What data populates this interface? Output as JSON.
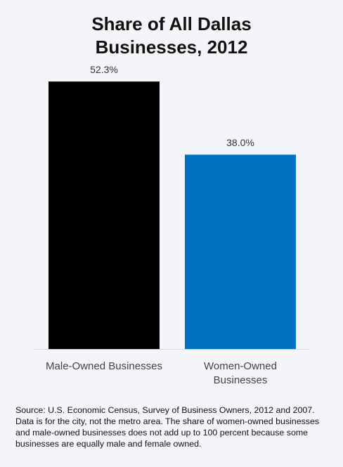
{
  "chart_data": {
    "type": "bar",
    "title_lines": [
      "Share of All Dallas",
      "Businesses, 2012"
    ],
    "categories": [
      "Male-Owned Businesses",
      "Women-Owned Businesses"
    ],
    "category_label_lines": [
      [
        "Male-Owned Businesses"
      ],
      [
        "Women-Owned",
        "Businesses"
      ]
    ],
    "values": [
      52.3,
      38.0
    ],
    "value_labels": [
      "52.3%",
      "38.0%"
    ],
    "colors": [
      "#000000",
      "#0070c0"
    ],
    "ylim": [
      0,
      60
    ],
    "grid": false,
    "xlabel": "",
    "ylabel": ""
  },
  "source_note": "Source: U.S. Economic Census, Survey of Business Owners, 2012 and 2007. Data is for the city, not the metro area. The share of women-owned businesses and male-owned businesses does not add up to 100 percent because some businesses are equally male and female owned."
}
